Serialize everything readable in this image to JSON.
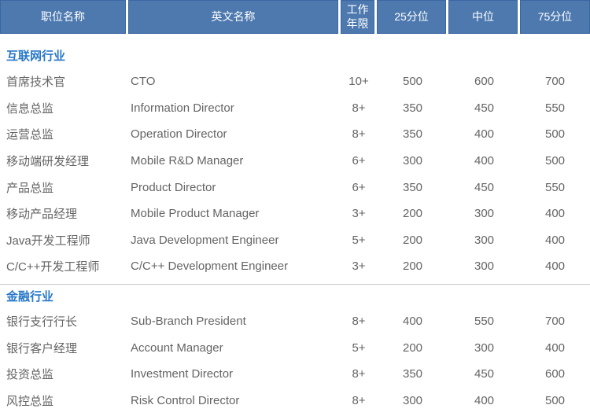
{
  "table": {
    "header": {
      "position_name": "职位名称",
      "english_name": "英文名称",
      "years_line1": "工作",
      "years_line2": "年限",
      "p25": "25分位",
      "median": "中位",
      "p75": "75分位"
    },
    "sections": [
      {
        "title": "互联网行业",
        "rows": [
          {
            "name": "首席技术官",
            "english": "CTO",
            "years": "10+",
            "p25": "500",
            "median": "600",
            "p75": "700"
          },
          {
            "name": "信息总监",
            "english": "Information Director",
            "years": "8+",
            "p25": "350",
            "median": "450",
            "p75": "550"
          },
          {
            "name": "运营总监",
            "english": "Operation Director",
            "years": "8+",
            "p25": "350",
            "median": "400",
            "p75": "500"
          },
          {
            "name": "移动端研发经理",
            "english": "Mobile R&D Manager",
            "years": "6+",
            "p25": "300",
            "median": "400",
            "p75": "500"
          },
          {
            "name": "产品总监",
            "english": "Product Director",
            "years": "6+",
            "p25": "350",
            "median": "450",
            "p75": "550"
          },
          {
            "name": "移动产品经理",
            "english": "Mobile Product Manager",
            "years": "3+",
            "p25": "200",
            "median": "300",
            "p75": "400"
          },
          {
            "name": "Java开发工程师",
            "english": "Java Development Engineer",
            "years": "5+",
            "p25": "200",
            "median": "300",
            "p75": "400"
          },
          {
            "name": "C/C++开发工程师",
            "english": "C/C++ Development Engineer",
            "years": "3+",
            "p25": "200",
            "median": "300",
            "p75": "400"
          }
        ]
      },
      {
        "title": "金融行业",
        "rows": [
          {
            "name": "银行支行行长",
            "english": "Sub-Branch President",
            "years": "8+",
            "p25": "400",
            "median": "550",
            "p75": "700"
          },
          {
            "name": "银行客户经理",
            "english": "Account Manager",
            "years": "5+",
            "p25": "200",
            "median": "300",
            "p75": "400"
          },
          {
            "name": "投资总监",
            "english": "Investment Director",
            "years": "8+",
            "p25": "350",
            "median": "450",
            "p75": "600"
          },
          {
            "name": "风控总监",
            "english": "Risk Control Director",
            "years": "8+",
            "p25": "300",
            "median": "400",
            "p75": "500"
          }
        ]
      }
    ]
  },
  "colors": {
    "header_bg": "#4d79af",
    "header_border": "#3a67a3",
    "header_text": "#ffffff",
    "section_title": "#2878c8",
    "body_text": "#646464",
    "divider": "#c9c9c9"
  }
}
